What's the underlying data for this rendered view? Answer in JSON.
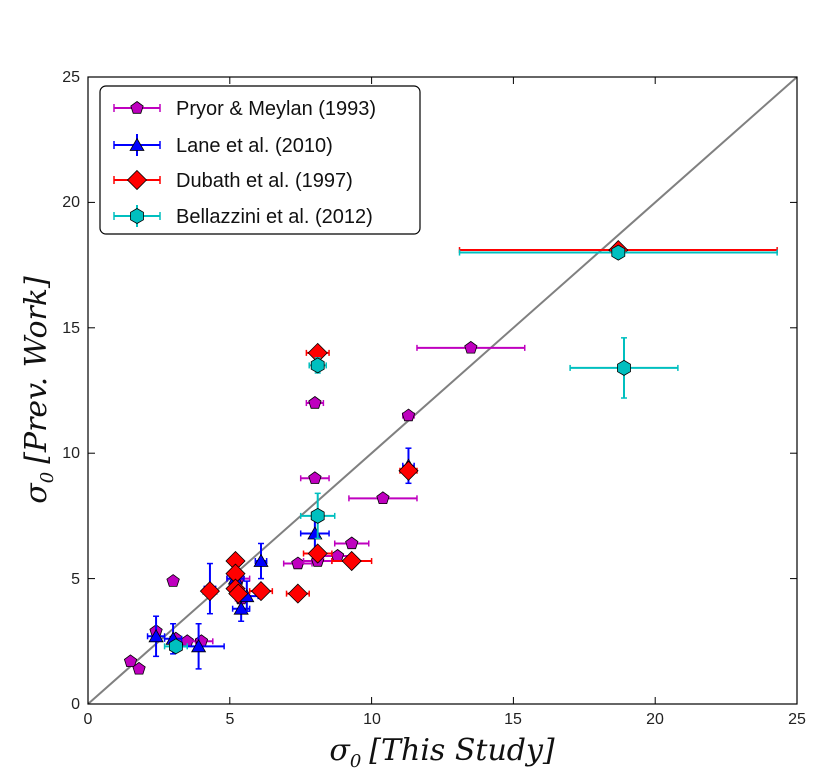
{
  "chart_data": {
    "type": "scatter",
    "xlabel": "σ0 [This Study]",
    "ylabel": "σ0 [Prev. Work]",
    "xlabel_parts": {
      "symbol": "σ",
      "sub": "0",
      "text": "[This Study]"
    },
    "ylabel_parts": {
      "symbol": "σ",
      "sub": "0",
      "text": "[Prev. Work]"
    },
    "xlim": [
      0,
      25
    ],
    "ylim": [
      0,
      25
    ],
    "xticks": [
      "0",
      "5",
      "10",
      "15",
      "20",
      "25"
    ],
    "yticks": [
      "0",
      "5",
      "10",
      "15",
      "20",
      "25"
    ],
    "legend_position": "top-left",
    "one_to_one_line": true,
    "series": [
      {
        "name": "Pryor & Meylan (1993)",
        "marker": "pentagon",
        "color": "#bf00bf",
        "points": [
          {
            "x": 1.5,
            "y": 1.7,
            "xerr": 0.0,
            "yerr": 0.0
          },
          {
            "x": 1.8,
            "y": 1.4,
            "xerr": 0.0,
            "yerr": 0.0
          },
          {
            "x": 2.4,
            "y": 2.9,
            "xerr": 0.0,
            "yerr": 0.0
          },
          {
            "x": 3.0,
            "y": 4.9,
            "xerr": 0.0,
            "yerr": 0.0
          },
          {
            "x": 3.1,
            "y": 2.6,
            "xerr": 0.0,
            "yerr": 0.0
          },
          {
            "x": 3.5,
            "y": 2.5,
            "xerr": 0.3,
            "yerr": 0.0
          },
          {
            "x": 4.0,
            "y": 2.5,
            "xerr": 0.4,
            "yerr": 0.0
          },
          {
            "x": 5.3,
            "y": 5.0,
            "xerr": 0.4,
            "yerr": 0.0
          },
          {
            "x": 5.4,
            "y": 4.2,
            "xerr": 0.2,
            "yerr": 0.0
          },
          {
            "x": 7.4,
            "y": 5.6,
            "xerr": 0.5,
            "yerr": 0.0
          },
          {
            "x": 8.0,
            "y": 12.0,
            "xerr": 0.3,
            "yerr": 0.0
          },
          {
            "x": 8.0,
            "y": 9.0,
            "xerr": 0.5,
            "yerr": 0.0
          },
          {
            "x": 8.1,
            "y": 5.7,
            "xerr": 0.5,
            "yerr": 0.0
          },
          {
            "x": 8.8,
            "y": 5.9,
            "xerr": 0.5,
            "yerr": 0.0
          },
          {
            "x": 9.3,
            "y": 6.4,
            "xerr": 0.6,
            "yerr": 0.0
          },
          {
            "x": 10.4,
            "y": 8.2,
            "xerr": 1.2,
            "yerr": 0.0
          },
          {
            "x": 11.3,
            "y": 11.5,
            "xerr": 0.2,
            "yerr": 0.0
          },
          {
            "x": 13.5,
            "y": 14.2,
            "xerr": 1.9,
            "yerr": 0.0
          }
        ]
      },
      {
        "name": "Lane et al. (2010)",
        "marker": "triangle",
        "color": "#0000ff",
        "points": [
          {
            "x": 2.4,
            "y": 2.7,
            "xerr": 0.3,
            "yerr": 0.8
          },
          {
            "x": 3.0,
            "y": 2.6,
            "xerr": 0.3,
            "yerr": 0.6
          },
          {
            "x": 3.9,
            "y": 2.3,
            "xerr": 0.9,
            "yerr": 0.9
          },
          {
            "x": 4.3,
            "y": 4.6,
            "xerr": 0.2,
            "yerr": 1.0
          },
          {
            "x": 5.2,
            "y": 5.0,
            "xerr": 0.3,
            "yerr": 0.5
          },
          {
            "x": 5.4,
            "y": 3.8,
            "xerr": 0.3,
            "yerr": 0.5
          },
          {
            "x": 5.6,
            "y": 4.3,
            "xerr": 0.4,
            "yerr": 0.6
          },
          {
            "x": 6.1,
            "y": 5.7,
            "xerr": 0.2,
            "yerr": 0.7
          },
          {
            "x": 8.0,
            "y": 6.8,
            "xerr": 0.5,
            "yerr": 0.7
          },
          {
            "x": 11.3,
            "y": 9.5,
            "xerr": 0.2,
            "yerr": 0.7
          }
        ]
      },
      {
        "name": "Dubath et al. (1997)",
        "marker": "diamond",
        "color": "#ff0000",
        "points": [
          {
            "x": 4.3,
            "y": 4.5,
            "xerr": 0.0,
            "yerr": 0.0
          },
          {
            "x": 5.2,
            "y": 5.7,
            "xerr": 0.0,
            "yerr": 0.0
          },
          {
            "x": 5.2,
            "y": 5.2,
            "xerr": 0.0,
            "yerr": 0.0
          },
          {
            "x": 5.2,
            "y": 4.6,
            "xerr": 0.0,
            "yerr": 0.0
          },
          {
            "x": 5.3,
            "y": 4.4,
            "xerr": 0.0,
            "yerr": 0.0
          },
          {
            "x": 6.1,
            "y": 4.5,
            "xerr": 0.4,
            "yerr": 0.0
          },
          {
            "x": 7.4,
            "y": 4.4,
            "xerr": 0.4,
            "yerr": 0.0
          },
          {
            "x": 8.1,
            "y": 14.0,
            "xerr": 0.4,
            "yerr": 0.0
          },
          {
            "x": 8.1,
            "y": 6.0,
            "xerr": 0.5,
            "yerr": 0.0
          },
          {
            "x": 9.3,
            "y": 5.7,
            "xerr": 0.7,
            "yerr": 0.0
          },
          {
            "x": 11.3,
            "y": 9.3,
            "xerr": 0.3,
            "yerr": 0.0
          },
          {
            "x": 18.7,
            "y": 18.1,
            "xerr": 5.6,
            "yerr": 0.0
          }
        ]
      },
      {
        "name": "Bellazzini et al. (2012)",
        "marker": "hexagon",
        "color": "#00bfbf",
        "points": [
          {
            "x": 3.1,
            "y": 2.3,
            "xerr": 0.4,
            "yerr": 0.0
          },
          {
            "x": 8.1,
            "y": 13.5,
            "xerr": 0.3,
            "yerr": 0.3
          },
          {
            "x": 8.1,
            "y": 7.5,
            "xerr": 0.6,
            "yerr": 0.9
          },
          {
            "x": 18.7,
            "y": 18.0,
            "xerr": 5.6,
            "yerr": 0.0
          },
          {
            "x": 18.9,
            "y": 13.4,
            "xerr": 1.9,
            "yerr": 1.2
          }
        ]
      }
    ]
  }
}
